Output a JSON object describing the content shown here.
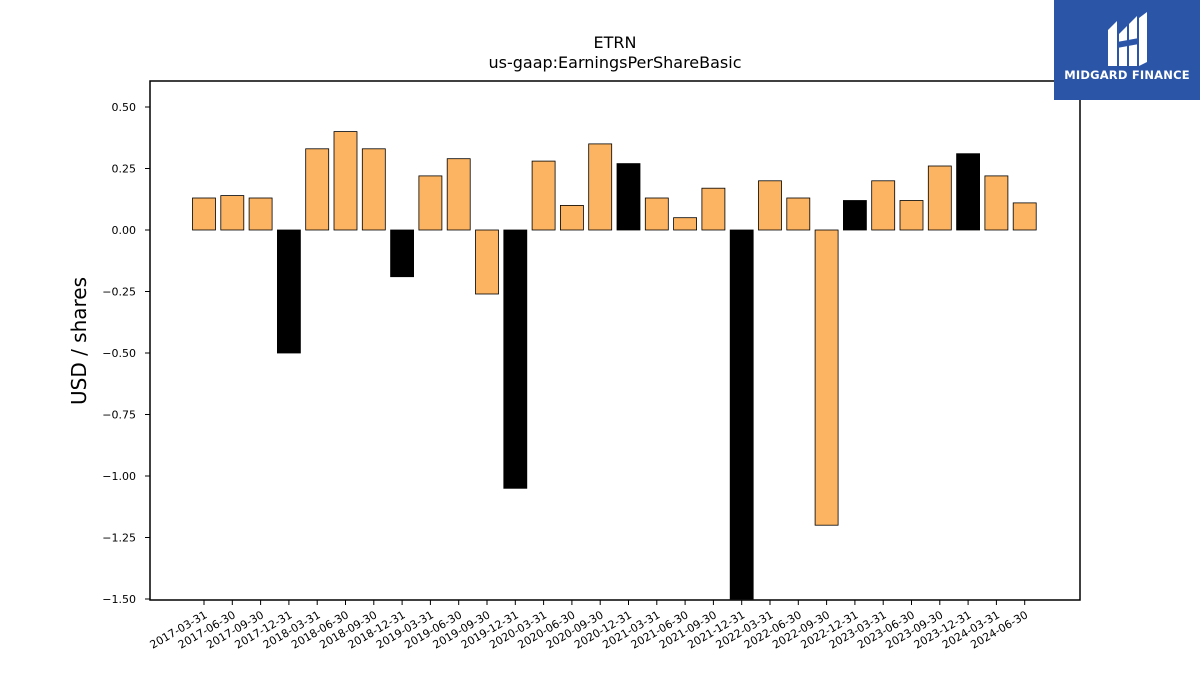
{
  "chart_data": {
    "type": "bar",
    "title": "ETRN",
    "subtitle": "us-gaap:EarningsPerShareBasic",
    "xlabel": "",
    "ylabel": "USD / shares",
    "ylim": [
      -1.5,
      0.6
    ],
    "yticks": [
      0.5,
      0.25,
      0.0,
      -0.25,
      -0.5,
      -0.75,
      -1.0,
      -1.25,
      -1.5
    ],
    "ytick_labels": [
      "0.50",
      "0.25",
      "0.00",
      "−0.25",
      "−0.50",
      "−0.75",
      "−1.00",
      "−1.25",
      "−1.50"
    ],
    "grid": false,
    "colors": {
      "annual": "#000000",
      "quarterly": "#fdb462",
      "edge": "#000000"
    },
    "categories": [
      "2017-03-31",
      "2017-06-30",
      "2017-09-30",
      "2017-12-31",
      "2018-03-31",
      "2018-06-30",
      "2018-09-30",
      "2018-12-31",
      "2019-03-31",
      "2019-06-30",
      "2019-09-30",
      "2019-12-31",
      "2020-03-31",
      "2020-06-30",
      "2020-09-30",
      "2020-12-31",
      "2021-03-31",
      "2021-06-30",
      "2021-09-30",
      "2021-12-31",
      "2022-03-31",
      "2022-06-30",
      "2022-09-30",
      "2022-12-31",
      "2023-03-31",
      "2023-06-30",
      "2023-09-30",
      "2023-12-31",
      "2024-03-31",
      "2024-06-30"
    ],
    "values": [
      0.13,
      0.14,
      0.13,
      -0.5,
      0.33,
      0.4,
      0.33,
      -0.19,
      0.22,
      0.29,
      -0.26,
      -1.05,
      0.28,
      0.1,
      0.35,
      0.27,
      0.13,
      0.05,
      0.17,
      -1.5,
      0.2,
      0.13,
      -1.2,
      0.12,
      0.2,
      0.12,
      0.26,
      0.31,
      0.22,
      0.11
    ],
    "highlight": [
      false,
      false,
      false,
      true,
      false,
      false,
      false,
      true,
      false,
      false,
      false,
      true,
      false,
      false,
      false,
      true,
      false,
      false,
      false,
      true,
      false,
      false,
      false,
      true,
      false,
      false,
      false,
      true,
      false,
      false
    ]
  },
  "logo": {
    "text": "MIDGARD FINANCE",
    "icon": "midgard-logo-icon",
    "background": "#2b56a8"
  }
}
